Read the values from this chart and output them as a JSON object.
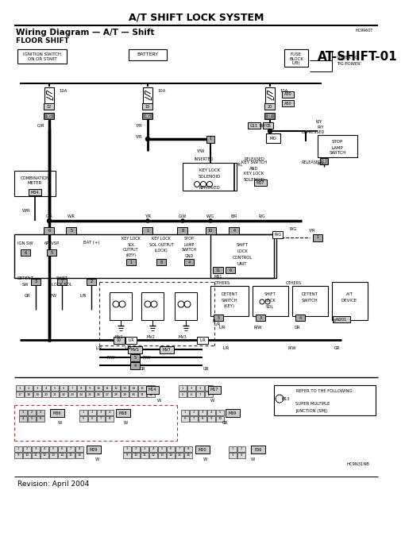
{
  "title": "A/T SHIFT LOCK SYSTEM",
  "subtitle1": "Wiring Diagram — A/T — Shift",
  "subtitle2": "FLOOR SHIFT",
  "page_ref": "AT-SHIFT-01",
  "doc_num": "HC9960T",
  "revision": "Revision: April 2004",
  "doc_num2": "HC9N31NB",
  "bg_color": "#ffffff",
  "line_color": "#222222",
  "gray_light": "#cccccc",
  "gray_mid": "#999999",
  "gray_dark": "#555555"
}
